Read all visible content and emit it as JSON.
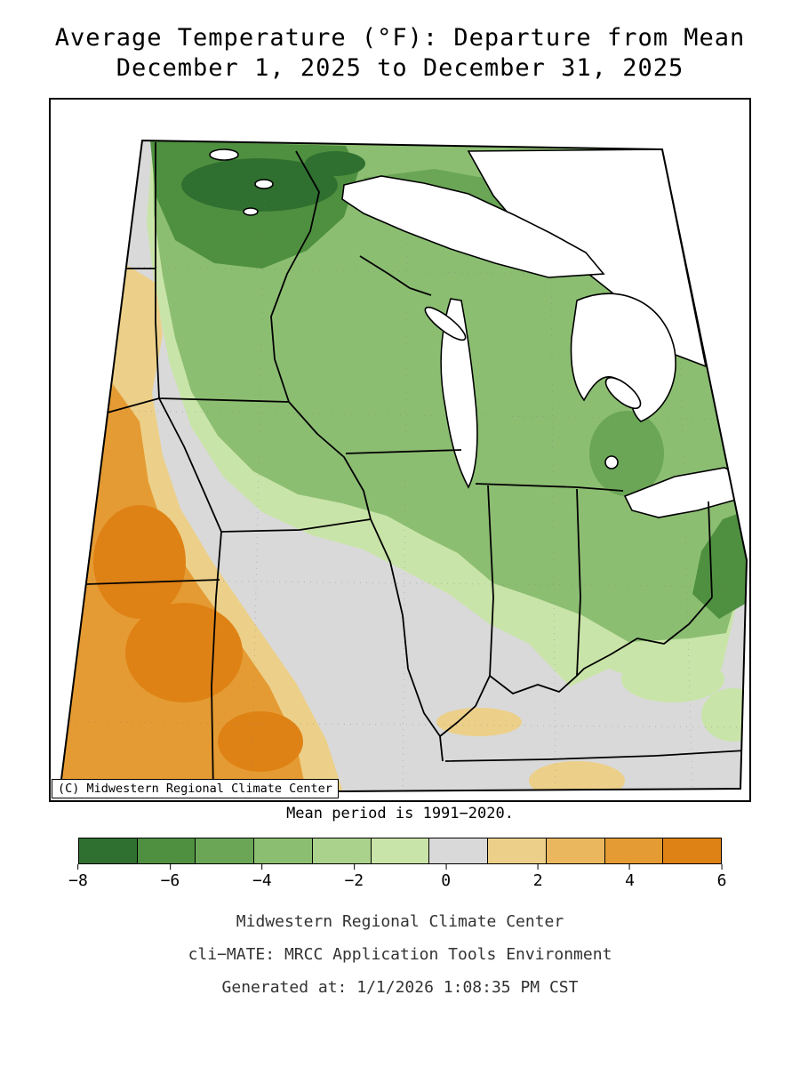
{
  "title": {
    "line1": "Average Temperature (°F): Departure from Mean",
    "line2": "December 1, 2025 to December 31, 2025"
  },
  "map": {
    "copyright": "(C) Midwestern Regional Climate Center",
    "caption": "Mean period is 1991−2020."
  },
  "legend": {
    "unit": "°F departure",
    "colors": [
      "#2f7030",
      "#4f9040",
      "#6aa656",
      "#8cbe72",
      "#abd28c",
      "#c9e4a8",
      "#d9d9d9",
      "#ecd089",
      "#eab75f",
      "#e59b33",
      "#df8215"
    ],
    "ticks": [
      "−8",
      "−6",
      "−4",
      "−2",
      "0",
      "2",
      "4",
      "6"
    ],
    "min": -8,
    "max": 6
  },
  "footer": {
    "line1": "Midwestern Regional Climate Center",
    "line2": "cli−MATE: MRCC Application Tools Environment",
    "line3": "Generated at: 1/1/2026 1:08:35 PM CST"
  }
}
